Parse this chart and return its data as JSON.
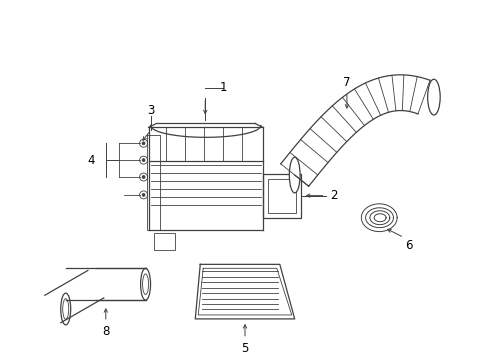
{
  "bg_color": "#ffffff",
  "line_color": "#404040",
  "label_color": "#000000",
  "figsize": [
    4.89,
    3.6
  ],
  "dpi": 100
}
